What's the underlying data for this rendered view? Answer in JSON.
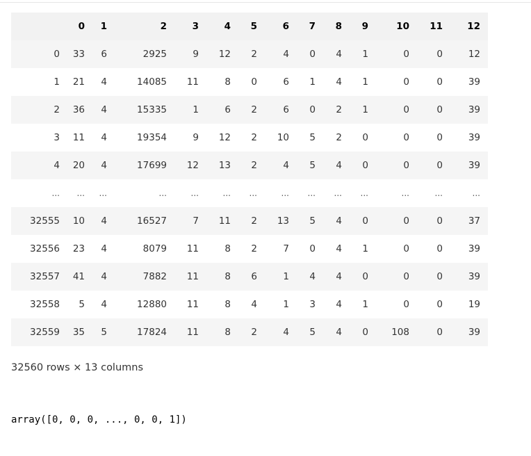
{
  "dataframe": {
    "columns": [
      "0",
      "1",
      "2",
      "3",
      "4",
      "5",
      "6",
      "7",
      "8",
      "9",
      "10",
      "11",
      "12"
    ],
    "rows": [
      {
        "index": "0",
        "cells": [
          "33",
          "6",
          "2925",
          "9",
          "12",
          "2",
          "4",
          "0",
          "4",
          "1",
          "0",
          "0",
          "12"
        ]
      },
      {
        "index": "1",
        "cells": [
          "21",
          "4",
          "14085",
          "11",
          "8",
          "0",
          "6",
          "1",
          "4",
          "1",
          "0",
          "0",
          "39"
        ]
      },
      {
        "index": "2",
        "cells": [
          "36",
          "4",
          "15335",
          "1",
          "6",
          "2",
          "6",
          "0",
          "2",
          "1",
          "0",
          "0",
          "39"
        ]
      },
      {
        "index": "3",
        "cells": [
          "11",
          "4",
          "19354",
          "9",
          "12",
          "2",
          "10",
          "5",
          "2",
          "0",
          "0",
          "0",
          "39"
        ]
      },
      {
        "index": "4",
        "cells": [
          "20",
          "4",
          "17699",
          "12",
          "13",
          "2",
          "4",
          "5",
          "4",
          "0",
          "0",
          "0",
          "39"
        ]
      },
      {
        "index": "...",
        "cells": [
          "...",
          "...",
          "...",
          "...",
          "...",
          "...",
          "...",
          "...",
          "...",
          "...",
          "...",
          "...",
          "..."
        ]
      },
      {
        "index": "32555",
        "cells": [
          "10",
          "4",
          "16527",
          "7",
          "11",
          "2",
          "13",
          "5",
          "4",
          "0",
          "0",
          "0",
          "37"
        ]
      },
      {
        "index": "32556",
        "cells": [
          "23",
          "4",
          "8079",
          "11",
          "8",
          "2",
          "7",
          "0",
          "4",
          "1",
          "0",
          "0",
          "39"
        ]
      },
      {
        "index": "32557",
        "cells": [
          "41",
          "4",
          "7882",
          "11",
          "8",
          "6",
          "1",
          "4",
          "4",
          "0",
          "0",
          "0",
          "39"
        ]
      },
      {
        "index": "32558",
        "cells": [
          "5",
          "4",
          "12880",
          "11",
          "8",
          "4",
          "1",
          "3",
          "4",
          "1",
          "0",
          "0",
          "19"
        ]
      },
      {
        "index": "32559",
        "cells": [
          "35",
          "5",
          "17824",
          "11",
          "8",
          "2",
          "4",
          "5",
          "4",
          "0",
          "108",
          "0",
          "39"
        ]
      }
    ],
    "shape_note": "32560 rows × 13 columns"
  },
  "array_output": "array([0, 0, 0, ..., 0, 0, 1])"
}
